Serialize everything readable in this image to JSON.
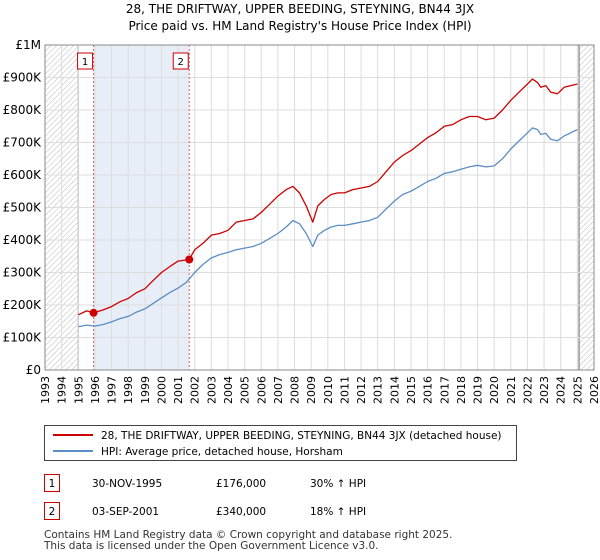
{
  "chart_data": {
    "type": "line",
    "title": "28, THE DRIFTWAY, UPPER BEEDING, STEYNING, BN44 3JX",
    "subtitle": "Price paid vs. HM Land Registry's House Price Index (HPI)",
    "xlabel": "",
    "ylabel": "",
    "xlim": [
      1993,
      2026
    ],
    "ylim": [
      0,
      1000000
    ],
    "x_ticks": [
      1993,
      1994,
      1995,
      1996,
      1997,
      1998,
      1999,
      2000,
      2001,
      2002,
      2003,
      2004,
      2005,
      2006,
      2007,
      2008,
      2009,
      2010,
      2011,
      2012,
      2013,
      2014,
      2015,
      2016,
      2017,
      2018,
      2019,
      2020,
      2021,
      2022,
      2023,
      2024,
      2025,
      2026
    ],
    "y_ticks": [
      {
        "value": 0,
        "label": "£0"
      },
      {
        "value": 100000,
        "label": "£100K"
      },
      {
        "value": 200000,
        "label": "£200K"
      },
      {
        "value": 300000,
        "label": "£300K"
      },
      {
        "value": 400000,
        "label": "£400K"
      },
      {
        "value": 500000,
        "label": "£500K"
      },
      {
        "value": 600000,
        "label": "£600K"
      },
      {
        "value": 700000,
        "label": "£700K"
      },
      {
        "value": 800000,
        "label": "£800K"
      },
      {
        "value": 900000,
        "label": "£900K"
      },
      {
        "value": 1000000,
        "label": "£1M"
      }
    ],
    "grid": true,
    "hatched_ranges": [
      [
        1993,
        1995.0
      ],
      [
        2025.1,
        2026
      ]
    ],
    "shaded_range": [
      1995.9,
      2001.67
    ],
    "series": [
      {
        "name": "28, THE DRIFTWAY, UPPER BEEDING, STEYNING, BN44 3JX (detached house)",
        "color": "#cc0000",
        "x": [
          1995.0,
          1995.5,
          1995.92,
          1996.5,
          1997,
          1997.5,
          1998,
          1998.5,
          1999,
          1999.5,
          2000,
          2000.5,
          2001,
          2001.67,
          2002,
          2002.5,
          2003,
          2003.5,
          2004,
          2004.5,
          2005,
          2005.5,
          2006,
          2006.5,
          2007,
          2007.5,
          2007.9,
          2008.3,
          2008.7,
          2009.1,
          2009.4,
          2009.8,
          2010.2,
          2010.6,
          2011,
          2011.5,
          2012,
          2012.5,
          2013,
          2013.5,
          2014,
          2014.5,
          2015,
          2015.5,
          2016,
          2016.5,
          2017,
          2017.5,
          2018,
          2018.5,
          2019,
          2019.5,
          2020,
          2020.5,
          2021,
          2021.5,
          2022,
          2022.3,
          2022.6,
          2022.8,
          2023.1,
          2023.4,
          2023.8,
          2024.2,
          2024.6,
          2025.0
        ],
        "values": [
          170000,
          182000,
          176000,
          185000,
          195000,
          210000,
          220000,
          238000,
          250000,
          275000,
          300000,
          318000,
          335000,
          340000,
          370000,
          390000,
          415000,
          420000,
          430000,
          455000,
          460000,
          465000,
          485000,
          510000,
          535000,
          555000,
          565000,
          545000,
          505000,
          455000,
          505000,
          525000,
          540000,
          545000,
          545000,
          555000,
          560000,
          565000,
          580000,
          610000,
          640000,
          660000,
          675000,
          695000,
          715000,
          730000,
          750000,
          755000,
          770000,
          780000,
          780000,
          770000,
          775000,
          800000,
          830000,
          855000,
          880000,
          895000,
          885000,
          870000,
          875000,
          855000,
          850000,
          870000,
          875000,
          880000
        ]
      },
      {
        "name": "HPI: Average price, detached house, Horsham",
        "color": "#5b8ec4",
        "x": [
          1995.0,
          1995.5,
          1996,
          1996.5,
          1997,
          1997.5,
          1998,
          1998.5,
          1999,
          1999.5,
          2000,
          2000.5,
          2001,
          2001.5,
          2002,
          2002.5,
          2003,
          2003.5,
          2004,
          2004.5,
          2005,
          2005.5,
          2006,
          2006.5,
          2007,
          2007.5,
          2007.9,
          2008.3,
          2008.7,
          2009.1,
          2009.4,
          2009.8,
          2010.2,
          2010.6,
          2011,
          2011.5,
          2012,
          2012.5,
          2013,
          2013.5,
          2014,
          2014.5,
          2015,
          2015.5,
          2016,
          2016.5,
          2017,
          2017.5,
          2018,
          2018.5,
          2019,
          2019.5,
          2020,
          2020.5,
          2021,
          2021.5,
          2022,
          2022.3,
          2022.6,
          2022.8,
          2023.1,
          2023.4,
          2023.8,
          2024.2,
          2024.6,
          2025.0
        ],
        "values": [
          133000,
          138000,
          135000,
          140000,
          148000,
          158000,
          165000,
          178000,
          188000,
          205000,
          222000,
          238000,
          252000,
          270000,
          300000,
          325000,
          345000,
          355000,
          362000,
          370000,
          375000,
          380000,
          390000,
          405000,
          420000,
          440000,
          460000,
          450000,
          420000,
          380000,
          415000,
          430000,
          440000,
          445000,
          445000,
          450000,
          455000,
          460000,
          470000,
          495000,
          520000,
          540000,
          550000,
          565000,
          580000,
          590000,
          605000,
          610000,
          618000,
          625000,
          630000,
          625000,
          628000,
          650000,
          680000,
          705000,
          730000,
          745000,
          740000,
          725000,
          728000,
          710000,
          705000,
          720000,
          730000,
          740000
        ]
      }
    ],
    "sales": [
      {
        "id": "1",
        "x": 1995.92,
        "value": 176000
      },
      {
        "id": "2",
        "x": 2001.67,
        "value": 340000
      }
    ]
  },
  "legend": {
    "series1": "28, THE DRIFTWAY, UPPER BEEDING, STEYNING, BN44 3JX (detached house)",
    "series2": "HPI: Average price, detached house, Horsham"
  },
  "transactions": [
    {
      "id": "1",
      "date": "30-NOV-1995",
      "price": "£176,000",
      "hpi": "30% ↑ HPI"
    },
    {
      "id": "2",
      "date": "03-SEP-2001",
      "price": "£340,000",
      "hpi": "18% ↑ HPI"
    }
  ],
  "footer": {
    "line1": "Contains HM Land Registry data © Crown copyright and database right 2025.",
    "line2": "This data is licensed under the Open Government Licence v3.0."
  }
}
